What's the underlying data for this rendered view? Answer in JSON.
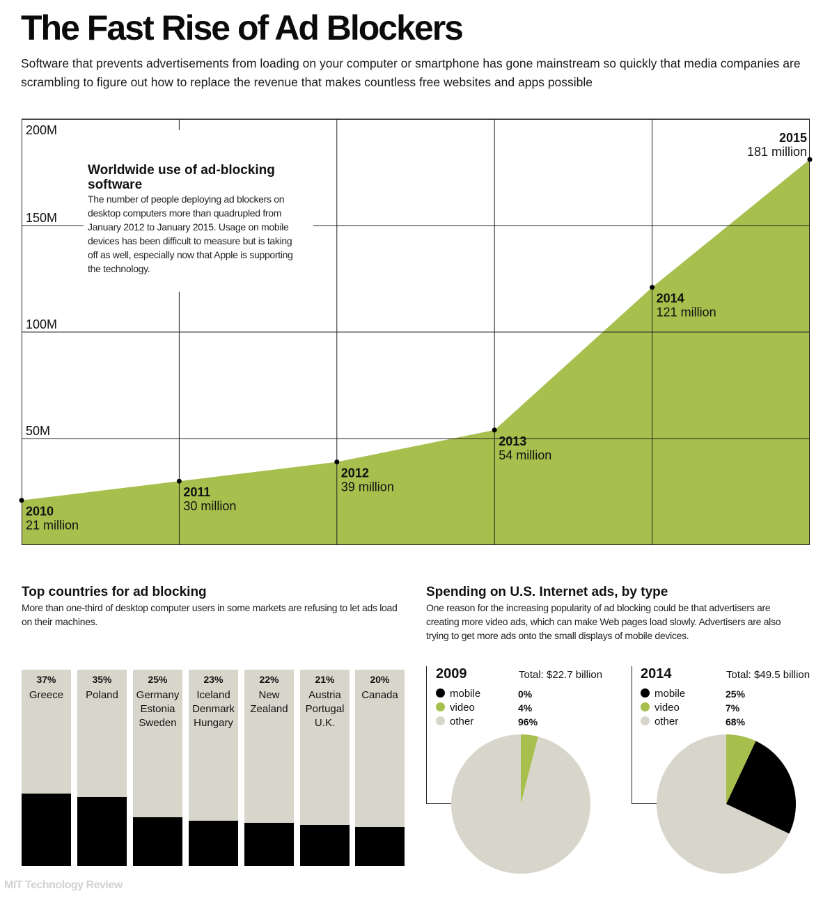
{
  "header": {
    "title": "The Fast Rise of Ad Blockers",
    "subtitle": "Software that prevents advertisements from loading on your computer or smartphone has gone mainstream so quickly that media companies are scrambling to figure out how to replace the revenue that makes countless free websites and apps possible"
  },
  "annotation": {
    "title": "Worldwide use of ad-blocking software",
    "body": "The number of people deploying ad blockers on desktop computers more than quadrupled from January 2012 to January 2015. Usage on mobile devices has been difficult to measure but is taking off as well, especially now that Apple is supporting the technology."
  },
  "countries_section": {
    "title": "Top countries for ad blocking",
    "description": "More than one-third of desktop computer users in some markets are refusing to let ads load on their machines."
  },
  "spending_section": {
    "title": "Spending on U.S. Internet ads, by type",
    "description": "One reason for the increasing popularity of ad blocking could be that advertisers are creating more video ads, which can make Web pages load slowly. Advertisers are also trying to get more ads onto the small displays of mobile devices."
  },
  "credit": "MIT Technology Review",
  "colors": {
    "green": "#a7bf4d",
    "black": "#000000",
    "gray": "#d8d6cb",
    "grid": "#222222"
  },
  "chart_data": [
    {
      "type": "area",
      "x": [
        2010,
        2011,
        2012,
        2013,
        2014,
        2015
      ],
      "y": [
        21,
        30,
        39,
        54,
        121,
        181
      ],
      "point_labels": [
        "2010",
        "2011",
        "2012",
        "2013",
        "2014",
        "2015"
      ],
      "value_labels": [
        "21 million",
        "30 million",
        "39 million",
        "54 million",
        "121 million",
        "181 million"
      ],
      "y_ticks": [
        "200M",
        "150M",
        "100M",
        "50M"
      ],
      "y_tick_values": [
        200,
        150,
        100,
        50
      ],
      "ylim": [
        0,
        200
      ],
      "grid": true
    },
    {
      "type": "bar",
      "categories": [
        [
          "Greece"
        ],
        [
          "Poland"
        ],
        [
          "Germany",
          "Estonia",
          "Sweden"
        ],
        [
          "Iceland",
          "Denmark",
          "Hungary"
        ],
        [
          "New",
          "Zealand"
        ],
        [
          "Austria",
          "Portugal",
          "U.K."
        ],
        [
          "Canada"
        ]
      ],
      "values": [
        37,
        35,
        25,
        23,
        22,
        21,
        20
      ],
      "value_labels": [
        "37%",
        "35%",
        "25%",
        "23%",
        "22%",
        "21%",
        "20%"
      ],
      "ylim": [
        0,
        100
      ]
    },
    {
      "type": "pie",
      "year": "2009",
      "total": "Total:  $22.7 billion",
      "slices": [
        {
          "name": "mobile",
          "value": 0,
          "label": "0%"
        },
        {
          "name": "video",
          "value": 4,
          "label": "4%"
        },
        {
          "name": "other",
          "value": 96,
          "label": "96%"
        }
      ]
    },
    {
      "type": "pie",
      "year": "2014",
      "total": "Total:  $49.5 billion",
      "slices": [
        {
          "name": "mobile",
          "value": 25,
          "label": "25%"
        },
        {
          "name": "video",
          "value": 7,
          "label": "7%"
        },
        {
          "name": "other",
          "value": 68,
          "label": "68%"
        }
      ]
    }
  ]
}
